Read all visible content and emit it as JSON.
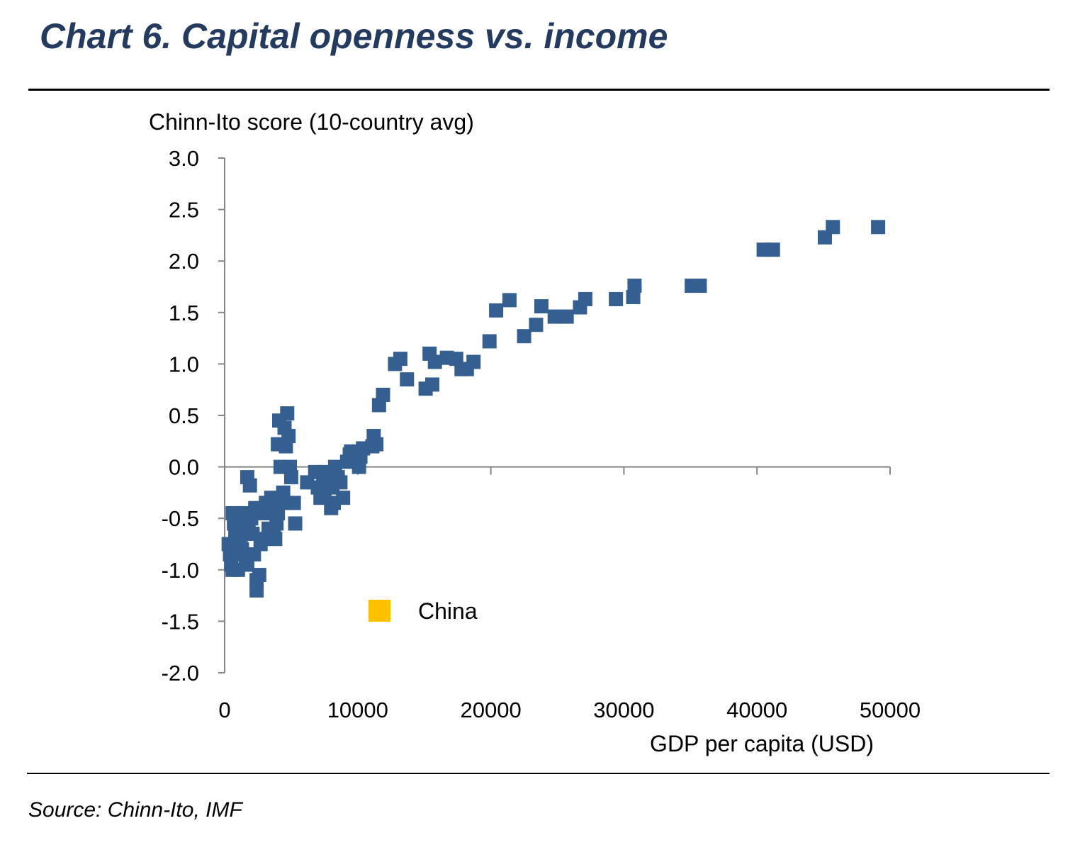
{
  "header": {
    "title": "Chart 6. Capital openness vs. income"
  },
  "footer": {
    "source": "Source: Chinn-Ito, IMF"
  },
  "colors": {
    "title": "#243a5e",
    "series": "#365f91",
    "highlight": "#ffc000"
  },
  "chart_data": {
    "type": "scatter",
    "title": "Chart 6. Capital openness vs. income",
    "xlabel": "GDP per capita (USD)",
    "ylabel": "Chinn-Ito score (10-country avg)",
    "xlim": [
      0,
      50000
    ],
    "ylim": [
      -2.0,
      3.0
    ],
    "xticks": [
      "0",
      "10000",
      "20000",
      "30000",
      "40000",
      "50000"
    ],
    "yticks": [
      "3.0",
      "2.5",
      "2.0",
      "1.5",
      "1.0",
      "0.5",
      "0.0",
      "-0.5",
      "-1.0",
      "-1.5",
      "-2.0"
    ],
    "grid": false,
    "legend": {
      "position": "bottom-left",
      "entries": [
        "China"
      ]
    },
    "series": [
      {
        "color": "#365f91",
        "points": [
          [
            300,
            -0.75
          ],
          [
            400,
            -0.85
          ],
          [
            500,
            -0.95
          ],
          [
            600,
            -1.0
          ],
          [
            600,
            -0.45
          ],
          [
            700,
            -0.55
          ],
          [
            800,
            -0.65
          ],
          [
            900,
            -0.75
          ],
          [
            1000,
            -0.85
          ],
          [
            1000,
            -1.0
          ],
          [
            1100,
            -0.5
          ],
          [
            1200,
            -0.7
          ],
          [
            1300,
            -0.8
          ],
          [
            1400,
            -0.45
          ],
          [
            1500,
            -0.6
          ],
          [
            1600,
            -0.9
          ],
          [
            1700,
            -0.95
          ],
          [
            1800,
            -0.55
          ],
          [
            1700,
            -0.1
          ],
          [
            1900,
            -0.18
          ],
          [
            2000,
            -0.5
          ],
          [
            2100,
            -0.65
          ],
          [
            2200,
            -0.85
          ],
          [
            2300,
            -0.4
          ],
          [
            2400,
            -1.1
          ],
          [
            2400,
            -1.2
          ],
          [
            2600,
            -1.05
          ],
          [
            2700,
            -0.75
          ],
          [
            2800,
            -0.7
          ],
          [
            3000,
            -0.45
          ],
          [
            3100,
            -0.35
          ],
          [
            3300,
            -0.6
          ],
          [
            3400,
            -0.4
          ],
          [
            3500,
            -0.3
          ],
          [
            3700,
            -0.65
          ],
          [
            3800,
            -0.7
          ],
          [
            3900,
            -0.55
          ],
          [
            4000,
            -0.45
          ],
          [
            4000,
            0.22
          ],
          [
            4100,
            0.45
          ],
          [
            4200,
            0.0
          ],
          [
            4300,
            -0.35
          ],
          [
            4400,
            -0.25
          ],
          [
            4500,
            0.38
          ],
          [
            4600,
            0.2
          ],
          [
            4700,
            0.52
          ],
          [
            4800,
            0.3
          ],
          [
            4900,
            0.0
          ],
          [
            5000,
            -0.1
          ],
          [
            5200,
            -0.35
          ],
          [
            5300,
            -0.55
          ],
          [
            6200,
            -0.15
          ],
          [
            6800,
            -0.05
          ],
          [
            7000,
            -0.2
          ],
          [
            7200,
            -0.3
          ],
          [
            7400,
            -0.1
          ],
          [
            7500,
            -0.25
          ],
          [
            7600,
            -0.05
          ],
          [
            7800,
            -0.15
          ],
          [
            8000,
            -0.4
          ],
          [
            8100,
            -0.2
          ],
          [
            8200,
            -0.35
          ],
          [
            8300,
            0.0
          ],
          [
            8500,
            -0.1
          ],
          [
            8700,
            -0.15
          ],
          [
            8900,
            -0.3
          ],
          [
            9200,
            0.05
          ],
          [
            9400,
            0.12
          ],
          [
            9500,
            0.15
          ],
          [
            9700,
            0.08
          ],
          [
            9900,
            0.1
          ],
          [
            10100,
            0.0
          ],
          [
            10200,
            0.1
          ],
          [
            10400,
            0.18
          ],
          [
            11100,
            0.2
          ],
          [
            11200,
            0.3
          ],
          [
            11400,
            0.22
          ],
          [
            11600,
            0.6
          ],
          [
            11900,
            0.7
          ],
          [
            12800,
            1.0
          ],
          [
            13200,
            1.05
          ],
          [
            13700,
            0.85
          ],
          [
            15100,
            0.76
          ],
          [
            15400,
            1.1
          ],
          [
            15600,
            0.8
          ],
          [
            15800,
            1.02
          ],
          [
            16700,
            1.06
          ],
          [
            17400,
            1.05
          ],
          [
            17800,
            0.95
          ],
          [
            18200,
            0.95
          ],
          [
            18700,
            1.02
          ],
          [
            19900,
            1.22
          ],
          [
            20400,
            1.52
          ],
          [
            21400,
            1.62
          ],
          [
            22500,
            1.27
          ],
          [
            23400,
            1.38
          ],
          [
            23800,
            1.56
          ],
          [
            24800,
            1.46
          ],
          [
            25700,
            1.46
          ],
          [
            26700,
            1.55
          ],
          [
            27100,
            1.63
          ],
          [
            29400,
            1.63
          ],
          [
            30700,
            1.65
          ],
          [
            30800,
            1.76
          ],
          [
            35100,
            1.76
          ],
          [
            35700,
            1.76
          ],
          [
            40500,
            2.11
          ],
          [
            41200,
            2.11
          ],
          [
            45100,
            2.23
          ],
          [
            45700,
            2.33
          ],
          [
            49100,
            2.33
          ]
        ]
      }
    ],
    "legend_entries": [
      {
        "label": "China",
        "color": "#ffc000"
      }
    ]
  }
}
